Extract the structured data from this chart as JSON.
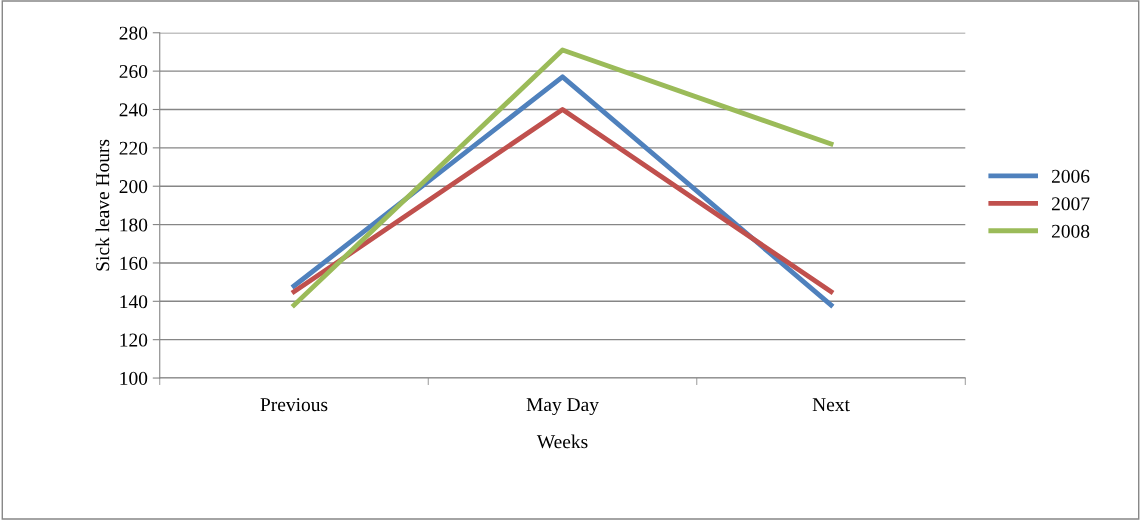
{
  "chart_data": {
    "type": "line",
    "xlabel": "Weeks",
    "ylabel": "Sick leave Hours",
    "categories": [
      "Previous",
      "May Day",
      "Next"
    ],
    "series": [
      {
        "name": "2006",
        "color": "#4f81bd",
        "values": [
          148,
          257,
          138
        ]
      },
      {
        "name": "2007",
        "color": "#c0504d",
        "values": [
          145,
          240,
          145
        ]
      },
      {
        "name": "2008",
        "color": "#9bbb59",
        "values": [
          138,
          271,
          222
        ]
      }
    ],
    "ylim": [
      100,
      280
    ],
    "yticks": [
      100,
      120,
      140,
      160,
      180,
      200,
      220,
      240,
      260,
      280
    ],
    "grid": "y",
    "legend": "right",
    "marker": "none",
    "line_style": "solid"
  }
}
